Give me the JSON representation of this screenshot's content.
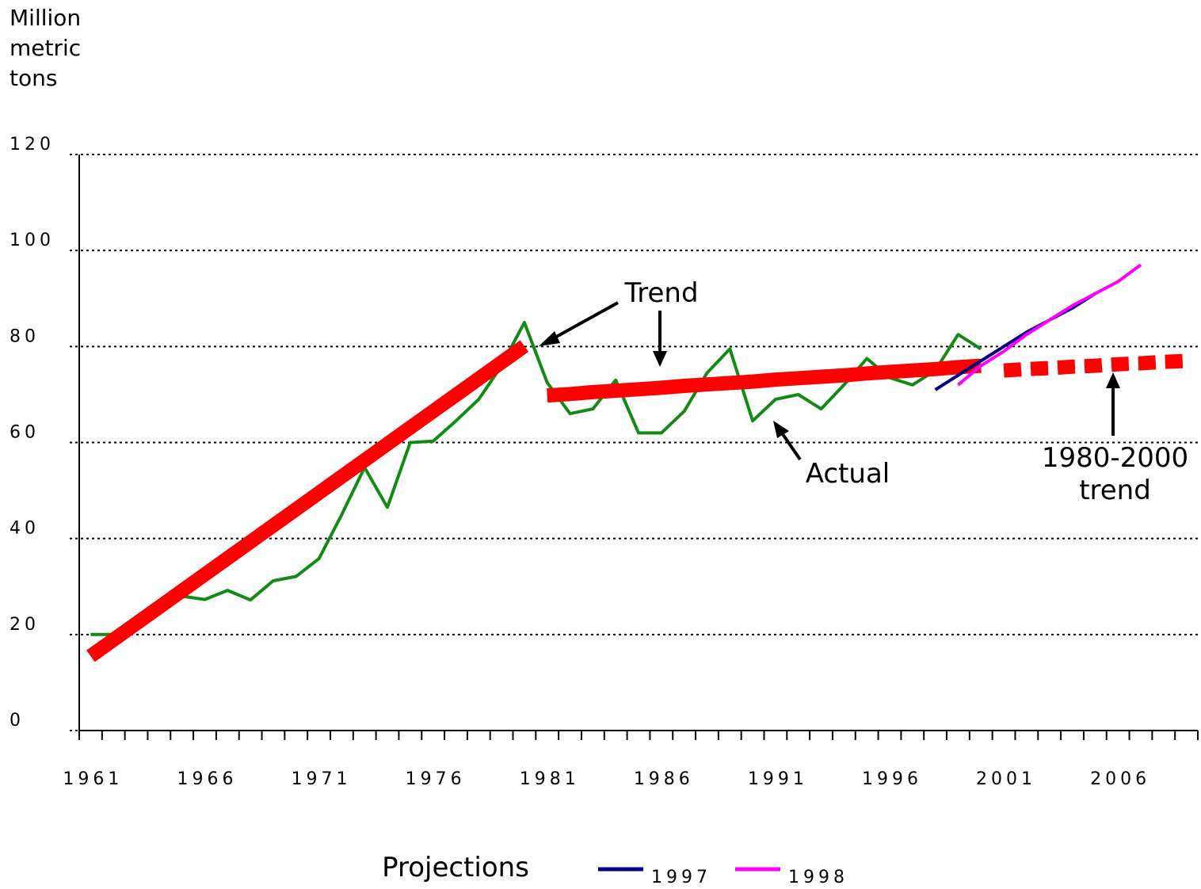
{
  "chart_data": {
    "type": "line",
    "y_label": "Million metric tons",
    "categories": [
      "1961",
      null,
      null,
      null,
      null,
      "1966",
      null,
      null,
      null,
      null,
      "1971",
      null,
      null,
      null,
      null,
      "1976",
      null,
      null,
      null,
      null,
      "1981",
      null,
      null,
      null,
      null,
      "1986",
      null,
      null,
      null,
      null,
      "1991",
      null,
      null,
      null,
      null,
      "1996",
      null,
      null,
      null,
      null,
      "2001",
      null,
      null,
      null,
      null,
      "2006",
      null,
      null,
      null
    ],
    "ylim": [
      0,
      120
    ],
    "yticks": [
      0,
      20,
      40,
      60,
      80,
      100,
      120
    ],
    "grid": true,
    "legend_title": "Projections",
    "series": [
      {
        "name": "Actual",
        "color": "#138a13",
        "width": 4,
        "values": [
          20,
          20,
          22.5,
          25,
          28,
          27.3,
          29.2,
          27.2,
          31.2,
          32.1,
          35.8,
          45,
          54.8,
          46.5,
          60,
          60.3,
          64.5,
          69,
          76,
          85,
          72.5,
          66,
          67,
          73,
          62,
          62,
          66.5,
          74.5,
          79.5,
          64.5,
          69,
          70,
          67,
          72,
          77.5,
          73.5,
          72,
          75,
          82.5,
          79.5,
          null,
          null,
          null,
          null,
          null,
          null,
          null,
          null,
          null
        ]
      },
      {
        "name": "Trend",
        "color": "#ff0000",
        "width": 18,
        "values": [
          15.5,
          18.9,
          22.3,
          25.7,
          29.1,
          32.5,
          35.9,
          39.3,
          42.7,
          46.1,
          49.5,
          52.9,
          56.3,
          59.7,
          63.1,
          66.5,
          69.9,
          73.3,
          76.7,
          80.1,
          null,
          null,
          null,
          null,
          null,
          null,
          null,
          null,
          null,
          null,
          null,
          null,
          null,
          null,
          null,
          null,
          null,
          null,
          null,
          null,
          null,
          null,
          null,
          null,
          null,
          null,
          null,
          null,
          null
        ]
      },
      {
        "color": "#ff0000",
        "width": 18,
        "values": [
          null,
          null,
          null,
          null,
          null,
          null,
          null,
          null,
          null,
          null,
          null,
          null,
          null,
          null,
          null,
          null,
          null,
          null,
          null,
          null,
          69.8,
          70.1,
          70.5,
          70.8,
          71.1,
          71.4,
          71.8,
          72.1,
          72.4,
          72.7,
          73.1,
          73.4,
          73.7,
          74.0,
          74.4,
          74.7,
          75.0,
          75.3,
          75.7,
          76.0,
          null,
          null,
          null,
          null,
          null,
          null,
          null,
          null,
          null
        ]
      },
      {
        "name": "1980-2000 trend",
        "color": "#ff0000",
        "width": 18,
        "dashed": true,
        "values": [
          null,
          null,
          null,
          null,
          null,
          null,
          null,
          null,
          null,
          null,
          null,
          null,
          null,
          null,
          null,
          null,
          null,
          null,
          null,
          null,
          null,
          null,
          null,
          null,
          null,
          null,
          null,
          null,
          null,
          null,
          null,
          null,
          null,
          null,
          null,
          null,
          null,
          null,
          null,
          null,
          75.0,
          75.3,
          75.5,
          75.8,
          76.0,
          76.3,
          76.5,
          76.8,
          77.0
        ]
      },
      {
        "name": "1997",
        "color": "#000080",
        "width": 4,
        "legend": true,
        "values": [
          null,
          null,
          null,
          null,
          null,
          null,
          null,
          null,
          null,
          null,
          null,
          null,
          null,
          null,
          null,
          null,
          null,
          null,
          null,
          null,
          null,
          null,
          null,
          null,
          null,
          null,
          null,
          null,
          null,
          null,
          null,
          null,
          null,
          null,
          null,
          null,
          null,
          71,
          74,
          77,
          80,
          83,
          85.5,
          88,
          91,
          null,
          null,
          null,
          null
        ]
      },
      {
        "name": "1998",
        "color": "#ff00ff",
        "width": 4,
        "legend": true,
        "values": [
          null,
          null,
          null,
          null,
          null,
          null,
          null,
          null,
          null,
          null,
          null,
          null,
          null,
          null,
          null,
          null,
          null,
          null,
          null,
          null,
          null,
          null,
          null,
          null,
          null,
          null,
          null,
          null,
          null,
          null,
          null,
          null,
          null,
          null,
          null,
          null,
          null,
          null,
          72,
          76,
          79,
          82.5,
          85.5,
          88.5,
          91,
          93.5,
          97,
          null,
          null
        ]
      }
    ]
  }
}
